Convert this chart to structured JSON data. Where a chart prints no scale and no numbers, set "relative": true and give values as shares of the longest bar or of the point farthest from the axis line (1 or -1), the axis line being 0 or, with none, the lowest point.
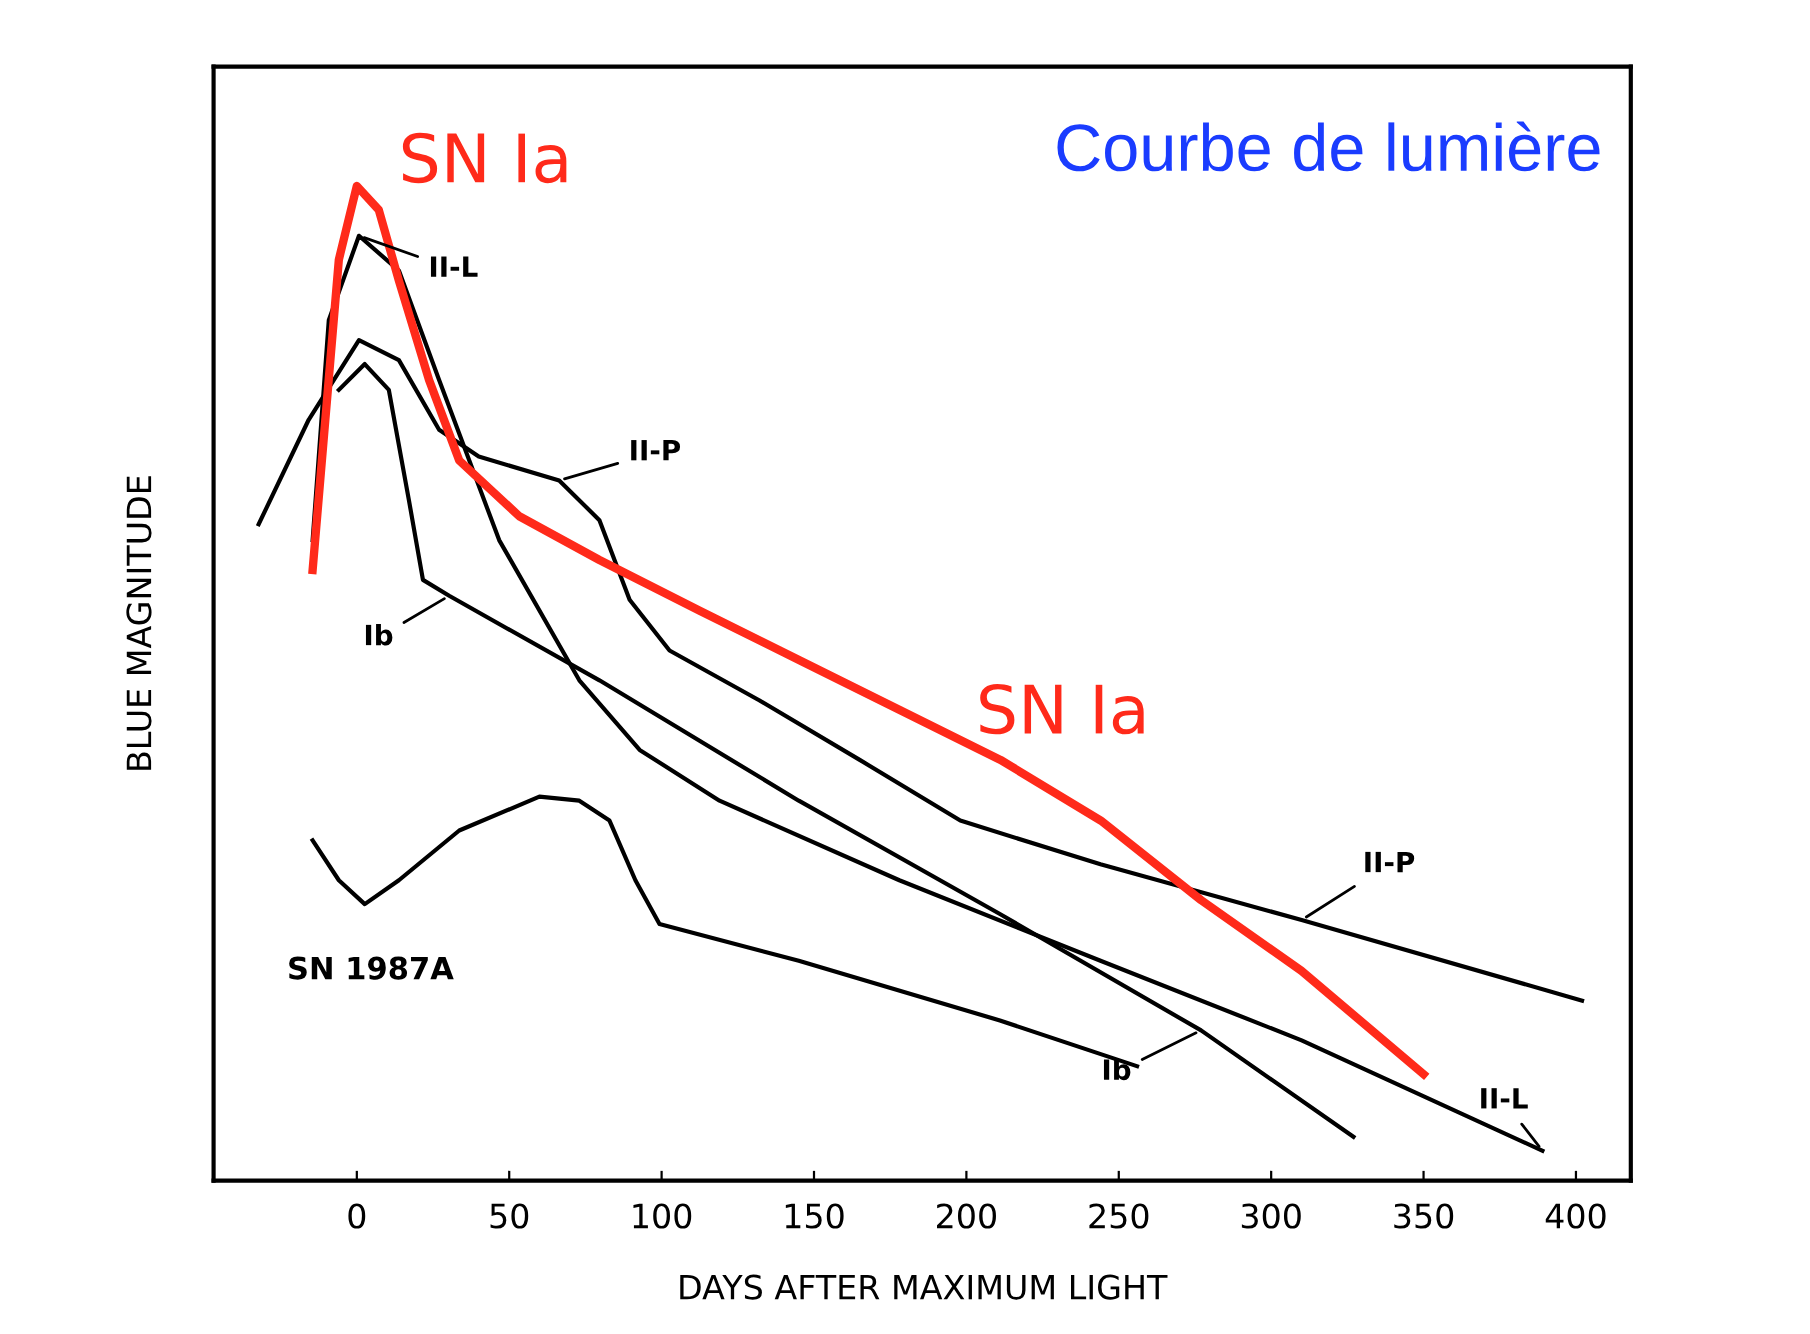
{
  "chart_data": {
    "type": "line",
    "title": "Courbe de lumière",
    "xlabel": "DAYS AFTER MAXIMUM LIGHT",
    "ylabel": "BLUE MAGNITUDE",
    "relative": true,
    "xlim": [
      -47,
      418
    ],
    "xticks": [
      0,
      50,
      100,
      150,
      200,
      250,
      300,
      350,
      400
    ],
    "grid": false,
    "legend": false,
    "marker": "none",
    "line_style": "solid",
    "series": [
      {
        "name": "SN Ia",
        "color": "#ff2a1a",
        "x": [
          -14.5,
          -5.9,
          0,
          7.2,
          13.8,
          23.7,
          33.6,
          53.3,
          79.6,
          112.5,
          145.4,
          178.3,
          211.2,
          244.1,
          277,
          309.9,
          350
        ],
        "values": [
          0.614,
          0.926,
          1.0,
          0.976,
          0.905,
          0.805,
          0.724,
          0.668,
          0.624,
          0.573,
          0.523,
          0.473,
          0.423,
          0.362,
          0.282,
          0.211,
          0.107
        ]
      },
      {
        "name": "II-L",
        "color": "#000000",
        "x": [
          -14.5,
          -9.2,
          0.7,
          13.8,
          27,
          46.7,
          73,
          92.8,
          119,
          178,
          244,
          310,
          389
        ],
        "values": [
          0.644,
          0.865,
          0.95,
          0.915,
          0.805,
          0.644,
          0.503,
          0.433,
          0.382,
          0.302,
          0.221,
          0.141,
          0.03
        ]
      },
      {
        "name": "II-P",
        "color": "#000000",
        "x": [
          -32.2,
          -15.8,
          0.7,
          13.8,
          27,
          40,
          66.4,
          79.6,
          89.5,
          102.6,
          132,
          165,
          198,
          244,
          310,
          402
        ],
        "values": [
          0.66,
          0.765,
          0.845,
          0.825,
          0.755,
          0.728,
          0.704,
          0.664,
          0.584,
          0.533,
          0.483,
          0.423,
          0.362,
          0.318,
          0.262,
          0.181
        ]
      },
      {
        "name": "Ib",
        "color": "#000000",
        "x": [
          -5.9,
          2.6,
          10.5,
          17.1,
          21.7,
          30.3,
          79.6,
          145,
          211,
          277,
          327
        ],
        "values": [
          0.795,
          0.821,
          0.795,
          0.684,
          0.604,
          0.588,
          0.503,
          0.382,
          0.268,
          0.151,
          0.044
        ]
      },
      {
        "name": "SN 1987A",
        "color": "#000000",
        "x": [
          -14.5,
          -5.9,
          2.6,
          13.8,
          33.6,
          59.9,
          73,
          82.9,
          91.4,
          99.3,
          145,
          211,
          256
        ],
        "values": [
          0.342,
          0.302,
          0.278,
          0.302,
          0.352,
          0.386,
          0.382,
          0.362,
          0.302,
          0.258,
          0.221,
          0.161,
          0.115
        ]
      }
    ]
  }
}
